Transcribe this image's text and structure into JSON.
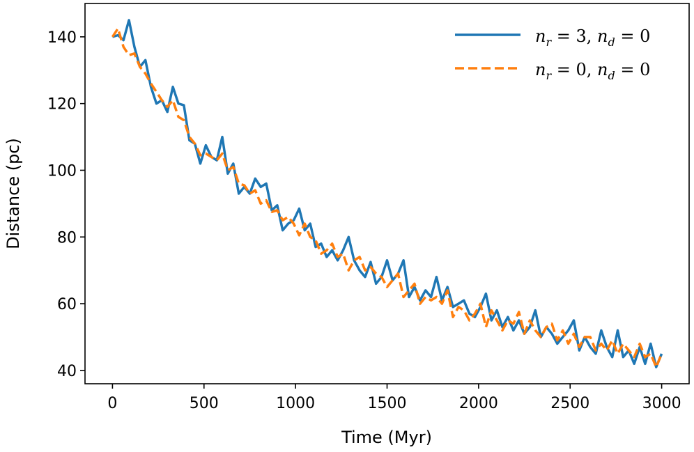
{
  "chart_data": {
    "type": "line",
    "title": "",
    "xlabel": "Time (Myr)",
    "ylabel": "Distance (pc)",
    "xlim": [
      -150,
      3150
    ],
    "ylim": [
      36,
      150
    ],
    "xticks": [
      0,
      500,
      1000,
      1500,
      2000,
      2500,
      3000
    ],
    "yticks": [
      40,
      60,
      80,
      100,
      120,
      140
    ],
    "xtick_labels": [
      "0",
      "500",
      "1000",
      "1500",
      "2000",
      "2500",
      "3000"
    ],
    "ytick_labels": [
      "40",
      "60",
      "80",
      "100",
      "120",
      "140"
    ],
    "grid": false,
    "legend_position": "top-right",
    "series": [
      {
        "name": "n_r=3, n_d=0",
        "legend_parts": {
          "var1": "n",
          "sub1": "r",
          "eq1": " = 3, ",
          "var2": "n",
          "sub2": "d",
          "eq2": " = 0"
        },
        "color": "#1f77b4",
        "style": "solid",
        "x": [
          0,
          30,
          60,
          90,
          120,
          150,
          180,
          210,
          240,
          270,
          300,
          330,
          360,
          390,
          420,
          450,
          480,
          510,
          540,
          570,
          600,
          630,
          660,
          690,
          720,
          750,
          780,
          810,
          840,
          870,
          900,
          930,
          960,
          990,
          1020,
          1050,
          1080,
          1110,
          1140,
          1170,
          1200,
          1230,
          1260,
          1290,
          1320,
          1350,
          1380,
          1410,
          1440,
          1470,
          1500,
          1530,
          1560,
          1590,
          1620,
          1650,
          1680,
          1710,
          1740,
          1770,
          1800,
          1830,
          1860,
          1890,
          1920,
          1950,
          1980,
          2010,
          2040,
          2070,
          2100,
          2130,
          2160,
          2190,
          2220,
          2250,
          2280,
          2310,
          2340,
          2370,
          2400,
          2430,
          2460,
          2490,
          2520,
          2550,
          2580,
          2610,
          2640,
          2670,
          2700,
          2730,
          2760,
          2790,
          2820,
          2850,
          2880,
          2910,
          2940,
          2970,
          3000
        ],
        "y": [
          140,
          140.5,
          139,
          145,
          137,
          131,
          133,
          125,
          120,
          121,
          117.5,
          125,
          120,
          119.5,
          109,
          108,
          102,
          107.5,
          104,
          103,
          110,
          99,
          102,
          93,
          95,
          93,
          97.5,
          95,
          96,
          88,
          89.5,
          82,
          84,
          85,
          88.5,
          82,
          84,
          77,
          78,
          74,
          76,
          73,
          76,
          80,
          73,
          70,
          68,
          72.5,
          66,
          68,
          73,
          67,
          69,
          73,
          62,
          65,
          61,
          64,
          62,
          68,
          61,
          65,
          59,
          60,
          61,
          57,
          56,
          59,
          63,
          55,
          58,
          53,
          56,
          52,
          55,
          51,
          53,
          58,
          50,
          53,
          51,
          48,
          50,
          52,
          55,
          46,
          50,
          47,
          45,
          52,
          47,
          44,
          52,
          44,
          46,
          42,
          47,
          42,
          48,
          41,
          45
        ]
      },
      {
        "name": "n_r=0, n_d=0",
        "legend_parts": {
          "var1": "n",
          "sub1": "r",
          "eq1": " = 0, ",
          "var2": "n",
          "sub2": "d",
          "eq2": " = 0"
        },
        "color": "#ff7f0e",
        "style": "dashed",
        "x": [
          0,
          30,
          60,
          90,
          120,
          150,
          180,
          210,
          240,
          270,
          300,
          330,
          360,
          390,
          420,
          450,
          480,
          510,
          540,
          570,
          600,
          630,
          660,
          690,
          720,
          750,
          780,
          810,
          840,
          870,
          900,
          930,
          960,
          990,
          1020,
          1050,
          1080,
          1110,
          1140,
          1170,
          1200,
          1230,
          1260,
          1290,
          1320,
          1350,
          1380,
          1410,
          1440,
          1470,
          1500,
          1530,
          1560,
          1590,
          1620,
          1650,
          1680,
          1710,
          1740,
          1770,
          1800,
          1830,
          1860,
          1890,
          1920,
          1950,
          1980,
          2010,
          2040,
          2070,
          2100,
          2130,
          2160,
          2190,
          2220,
          2250,
          2280,
          2310,
          2340,
          2370,
          2400,
          2430,
          2460,
          2490,
          2520,
          2550,
          2580,
          2610,
          2640,
          2670,
          2700,
          2730,
          2760,
          2790,
          2820,
          2850,
          2880,
          2910,
          2940,
          2970,
          3000
        ],
        "y": [
          140,
          142.5,
          137,
          134.5,
          135,
          131,
          129,
          126,
          123.5,
          121,
          119,
          121,
          116,
          115,
          110,
          108,
          104.5,
          105,
          104,
          103,
          105,
          100,
          101,
          96,
          95.5,
          93,
          94,
          90,
          91,
          87.5,
          88,
          85,
          86,
          84,
          80.5,
          84,
          80,
          79,
          75,
          76,
          78,
          74,
          75,
          70,
          73,
          74,
          70,
          71,
          69,
          68,
          65,
          67,
          69,
          62,
          64,
          66,
          60,
          62,
          61,
          62,
          60,
          64,
          56,
          59,
          58,
          55,
          57,
          60,
          53,
          58,
          55,
          52,
          55,
          54,
          57.5,
          51,
          55,
          52,
          50,
          53,
          54,
          49,
          52,
          48,
          51,
          47,
          50,
          50,
          46,
          48,
          46,
          49,
          45,
          48,
          46,
          44,
          48,
          44,
          45,
          41,
          45
        ]
      }
    ]
  }
}
